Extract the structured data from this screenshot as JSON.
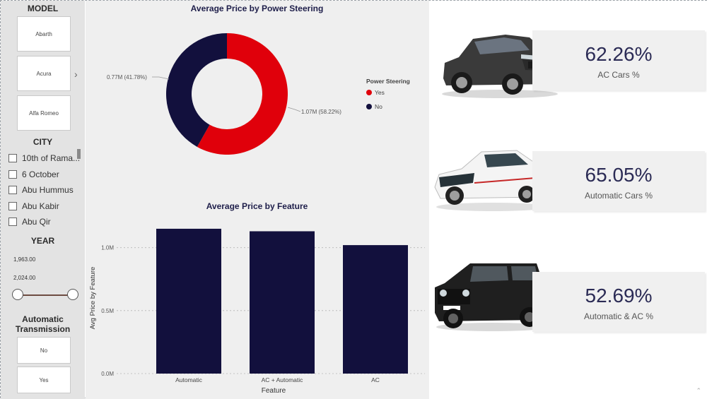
{
  "filters": {
    "model": {
      "title": "MODEL",
      "tiles": [
        "Abarth",
        "Acura",
        "Alfa Romeo"
      ]
    },
    "city": {
      "title": "CITY",
      "items": [
        "10th of Rama...",
        "6 October",
        "Abu Hummus",
        "Abu Kabir",
        "Abu Qir"
      ]
    },
    "year": {
      "title": "YEAR",
      "min": "1,963.00",
      "max": "2,024.00",
      "range_fraction": [
        0,
        1
      ]
    },
    "transmission": {
      "title_line1": "Automatic",
      "title_line2": "Transmission",
      "tiles": [
        "No",
        "Yes"
      ]
    }
  },
  "donut": {
    "title": "Average Price by Power Steering",
    "legend_title": "Power Steering",
    "legend": [
      {
        "label": "Yes",
        "color": "#e0000b"
      },
      {
        "label": "No",
        "color": "#12103d"
      }
    ],
    "label_no": "0.77M (41.78%)",
    "label_yes": "1.07M (58.22%)"
  },
  "bar": {
    "title": "Average Price by Feature",
    "xlabel": "Feature",
    "ylabel": "Avg Price by Feature",
    "yticks": [
      "0.0M",
      "0.5M",
      "1.0M"
    ]
  },
  "kpis": [
    {
      "value": "62.26%",
      "label": "AC Cars %"
    },
    {
      "value": "65.05%",
      "label": "Automatic Cars %"
    },
    {
      "value": "52.69%",
      "label": "Automatic & AC %"
    }
  ],
  "colors": {
    "navy": "#12103d",
    "red": "#e0000b",
    "sidebar": "#e3e3e3"
  },
  "chart_data": [
    {
      "type": "pie",
      "title": "Average Price by Power Steering",
      "categories": [
        "Yes",
        "No"
      ],
      "values": [
        1.07,
        0.77
      ],
      "percent": [
        58.22,
        41.78
      ],
      "legend": "right"
    },
    {
      "type": "bar",
      "title": "Average Price by Feature",
      "categories": [
        "Automatic",
        "AC + Automatic",
        "AC"
      ],
      "values": [
        1.15,
        1.13,
        1.02
      ],
      "xlabel": "Feature",
      "ylabel": "Avg Price by Feature",
      "ylim": [
        0,
        1.2
      ],
      "yticks": [
        "0.0M",
        "0.5M",
        "1.0M"
      ],
      "grid": true
    }
  ]
}
